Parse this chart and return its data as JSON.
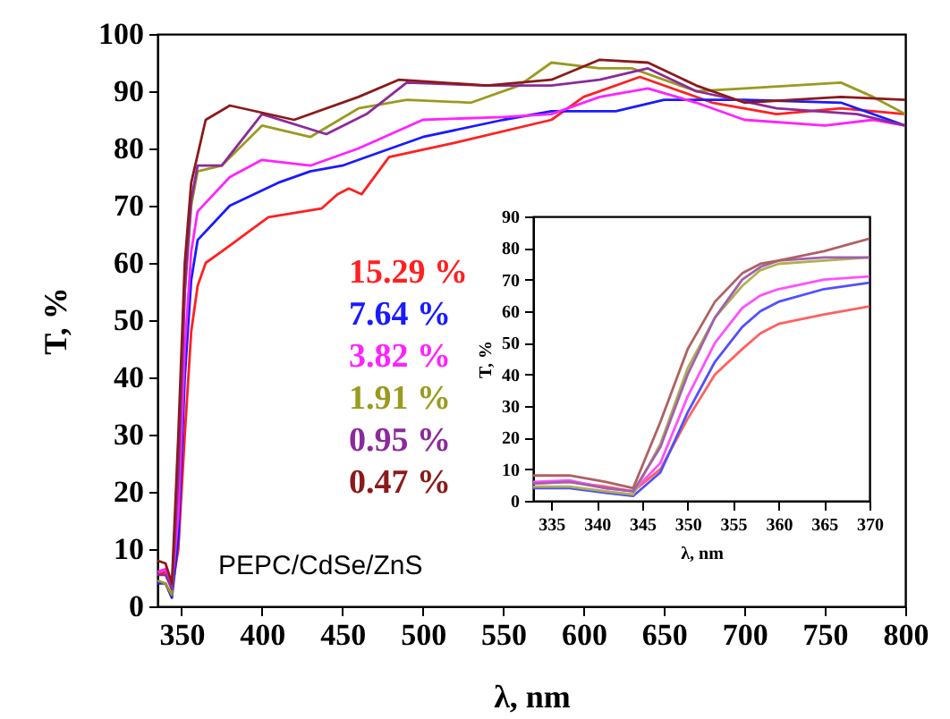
{
  "chart_data": [
    {
      "type": "line",
      "xlabel": "λ, nm",
      "ylabel": "T, %",
      "xlim": [
        335,
        800
      ],
      "ylim": [
        0,
        100
      ],
      "xticks": [
        350,
        400,
        450,
        500,
        550,
        600,
        650,
        700,
        750,
        800
      ],
      "yticks": [
        0,
        10,
        20,
        30,
        40,
        50,
        60,
        70,
        80,
        90,
        100
      ],
      "annotations": [
        "PEPC/CdSe/ZnS"
      ],
      "series": [
        {
          "name": "15.29 %",
          "color": "#ff2020",
          "x": [
            335,
            340,
            344,
            348,
            352,
            356,
            360,
            365,
            375,
            404,
            437,
            447,
            454,
            462,
            479,
            520,
            580,
            600,
            635,
            660,
            680,
            720,
            760,
            800
          ],
          "values": [
            5.5,
            6,
            3,
            10,
            30,
            48,
            56,
            60,
            62,
            68,
            69.5,
            72,
            73,
            72,
            78.5,
            81,
            85,
            89,
            92.5,
            90,
            88,
            86,
            87,
            86
          ]
        },
        {
          "name": "7.64 %",
          "color": "#1a1aff",
          "x": [
            335,
            340,
            344,
            348,
            352,
            356,
            360,
            380,
            410,
            430,
            450,
            460,
            480,
            500,
            550,
            580,
            620,
            650,
            700,
            760,
            800
          ],
          "values": [
            4,
            4,
            1.5,
            12,
            40,
            57,
            64,
            70,
            74,
            76,
            77,
            78,
            80,
            82,
            85,
            86.5,
            86.5,
            88.5,
            88.5,
            88,
            84
          ]
        },
        {
          "name": "3.82 %",
          "color": "#ff22ff",
          "x": [
            335,
            340,
            344,
            348,
            352,
            356,
            360,
            380,
            400,
            430,
            460,
            500,
            550,
            580,
            610,
            640,
            670,
            700,
            750,
            780,
            800
          ],
          "values": [
            6,
            6.5,
            3,
            16,
            45,
            62,
            69,
            75,
            78,
            77,
            80,
            85,
            85.5,
            86,
            89,
            90.5,
            88,
            85,
            84,
            85,
            84
          ]
        },
        {
          "name": "1.91 %",
          "color": "#9a9a20",
          "x": [
            335,
            340,
            344,
            348,
            352,
            356,
            360,
            375,
            400,
            430,
            460,
            490,
            530,
            560,
            580,
            610,
            630,
            670,
            700,
            760,
            780,
            800
          ],
          "values": [
            4.5,
            4,
            2,
            25,
            55,
            70,
            76,
            77,
            84,
            82,
            87,
            88.5,
            88,
            91,
            95,
            94,
            94,
            90,
            90.5,
            91.5,
            89,
            86
          ]
        },
        {
          "name": "0.95 %",
          "color": "#8b2a9b",
          "x": [
            335,
            340,
            344,
            348,
            352,
            356,
            360,
            375,
            400,
            440,
            465,
            490,
            540,
            580,
            610,
            640,
            670,
            720,
            770,
            800
          ],
          "values": [
            5.5,
            5.5,
            3,
            23,
            55,
            71,
            77,
            77,
            86,
            82.5,
            86,
            91.5,
            91,
            91,
            92,
            94,
            90,
            87,
            86,
            84
          ]
        },
        {
          "name": "0.47 %",
          "color": "#8b1a1a",
          "x": [
            335,
            340,
            344,
            348,
            352,
            356,
            365,
            380,
            420,
            460,
            485,
            540,
            580,
            610,
            640,
            670,
            700,
            760,
            800
          ],
          "values": [
            8,
            7.5,
            4,
            30,
            60,
            74,
            85,
            87.5,
            85,
            89,
            92,
            91,
            92,
            95.5,
            95,
            91,
            88,
            89,
            88.5
          ]
        }
      ]
    },
    {
      "type": "line",
      "xlabel": "λ, nm",
      "ylabel": "T, %",
      "xlim": [
        333,
        370
      ],
      "ylim": [
        0,
        90
      ],
      "xticks": [
        335,
        340,
        345,
        350,
        355,
        360,
        365,
        370
      ],
      "yticks": [
        0,
        10,
        20,
        30,
        40,
        50,
        60,
        70,
        80,
        90
      ],
      "series": [
        {
          "color": "#ff6060",
          "x": [
            333,
            337,
            341,
            344,
            347,
            350,
            353,
            356,
            358,
            360,
            365,
            370
          ],
          "values": [
            5.5,
            6,
            4.5,
            3,
            10,
            26,
            40,
            48,
            53,
            56,
            59,
            61.5
          ]
        },
        {
          "color": "#5050ff",
          "x": [
            333,
            337,
            341,
            344,
            347,
            350,
            353,
            356,
            358,
            360,
            365,
            370
          ],
          "values": [
            4,
            4,
            2.5,
            1.5,
            9,
            28,
            44,
            55,
            60,
            63,
            67,
            69
          ]
        },
        {
          "color": "#ff50ff",
          "x": [
            333,
            337,
            341,
            344,
            347,
            350,
            353,
            356,
            358,
            360,
            365,
            370
          ],
          "values": [
            6,
            6.5,
            4,
            3,
            12,
            33,
            50,
            61,
            65,
            67,
            70,
            71
          ]
        },
        {
          "color": "#b0b050",
          "x": [
            333,
            337,
            341,
            344,
            347,
            350,
            353,
            356,
            358,
            360,
            365,
            370
          ],
          "values": [
            4.5,
            4.5,
            3,
            2,
            18,
            42,
            58,
            68,
            73,
            75,
            76,
            77
          ]
        },
        {
          "color": "#a060b0",
          "x": [
            333,
            337,
            341,
            344,
            347,
            350,
            353,
            356,
            358,
            360,
            365,
            370
          ],
          "values": [
            5.5,
            6,
            4,
            3,
            17,
            40,
            58,
            70,
            74,
            76,
            77,
            77
          ]
        },
        {
          "color": "#b06060",
          "x": [
            333,
            337,
            341,
            344,
            347,
            350,
            353,
            356,
            358,
            360,
            365,
            370
          ],
          "values": [
            8,
            8,
            6,
            4,
            25,
            48,
            63,
            72,
            75,
            76,
            79,
            83
          ]
        }
      ]
    }
  ]
}
